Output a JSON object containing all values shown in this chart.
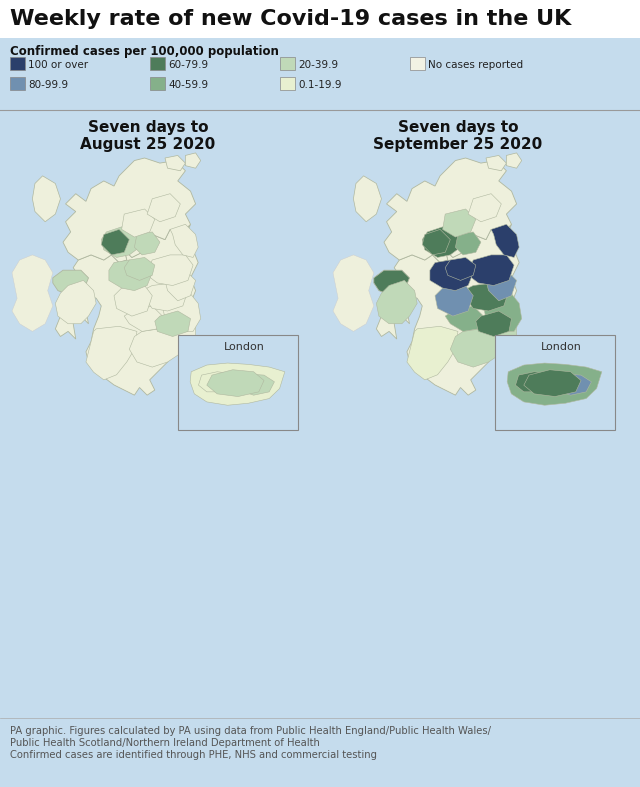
{
  "title": "Weekly rate of new Covid-19 cases in the UK",
  "subtitle": "Confirmed cases per 100,000 population",
  "bg_color": "#c5dced",
  "legend_items": [
    {
      "label": "100 or over",
      "color": "#2b3f6b"
    },
    {
      "label": "80-99.9",
      "color": "#7090b0"
    },
    {
      "label": "60-79.9",
      "color": "#4e7c5a"
    },
    {
      "label": "40-59.9",
      "color": "#85b08a"
    },
    {
      "label": "20-39.9",
      "color": "#c0d9b8"
    },
    {
      "label": "0.1-19.9",
      "color": "#e8f0d0"
    },
    {
      "label": "No cases reported",
      "color": "#f2f2e4"
    }
  ],
  "map1_title": "Seven days to\nAugust 25 2020",
  "map2_title": "Seven days to\nSeptember 25 2020",
  "london_label": "London",
  "footer_line1": "PA graphic. Figures calculated by PA using data from Public Health England/Public Health Wales/",
  "footer_line2": "Public Health Scotland/Northern Ireland Department of Health",
  "footer_line3": "Confirmed cases are identified through PHE, NHS and commercial testing",
  "land_color": "#eef0dc",
  "border_color": "#b0b8a0",
  "title_color": "#111111",
  "subtitle_color": "#111111",
  "footer_color": "#555555"
}
